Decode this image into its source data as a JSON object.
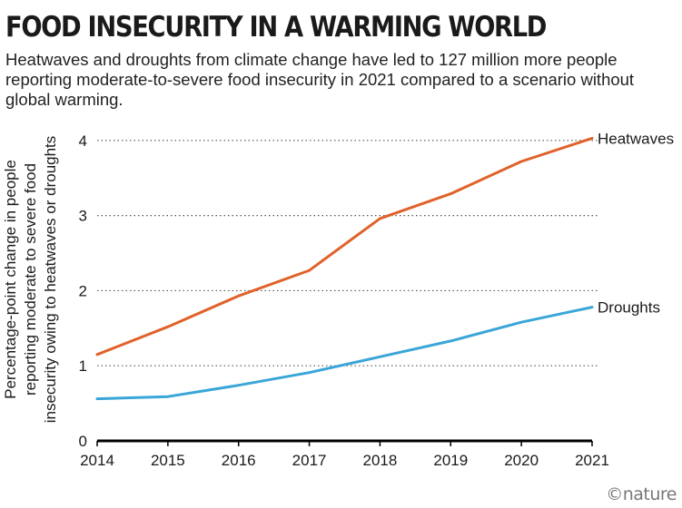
{
  "title": "FOOD INSECURITY IN A WARMING WORLD",
  "subtitle": "Heatwaves and droughts from climate change have led to 127 million more people reporting moderate-to-severe food insecurity in 2021 compared to a scenario without global warming.",
  "logo": "©nature",
  "colors": {
    "heatwaves": "#e0622a",
    "droughts": "#3aa6d8"
  },
  "chart_data": {
    "type": "line",
    "x": [
      2014,
      2015,
      2016,
      2017,
      2018,
      2019,
      2020,
      2021
    ],
    "series": [
      {
        "name": "Heatwaves",
        "values": [
          1.15,
          1.52,
          1.93,
          2.27,
          2.96,
          3.29,
          3.72,
          4.03
        ]
      },
      {
        "name": "Droughts",
        "values": [
          0.56,
          0.59,
          0.74,
          0.91,
          1.12,
          1.33,
          1.58,
          1.78
        ]
      }
    ],
    "ylabel_lines": [
      "Percentage-point change in people",
      "reporting moderate to severe food",
      "insecurity owing to heatwaves or droughts"
    ],
    "xlabel": "",
    "yticks": [
      0,
      1,
      2,
      3,
      4
    ],
    "ylim": [
      0,
      4.3
    ],
    "xlim": [
      2014,
      2021
    ],
    "grid": "horizontal-dotted"
  }
}
